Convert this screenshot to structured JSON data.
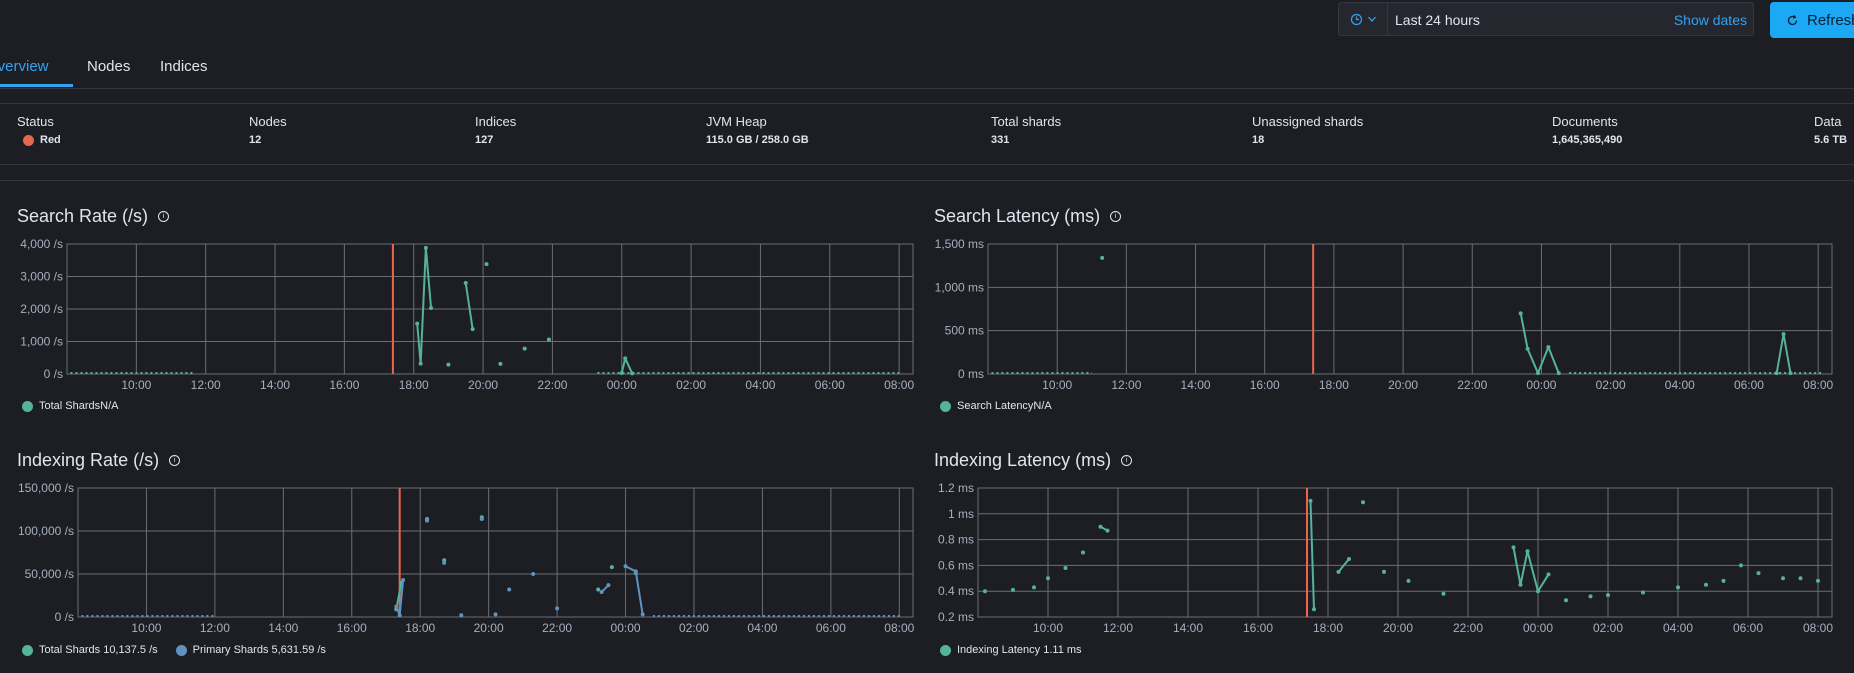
{
  "datepicker": {
    "range_label": "Last 24 hours",
    "show_dates_label": "Show dates"
  },
  "refresh_label": "Refresh",
  "tabs": [
    {
      "label": "Overview"
    },
    {
      "label": "Nodes"
    },
    {
      "label": "Indices"
    }
  ],
  "summary": {
    "status_label": "Status",
    "status_value": "Red",
    "status_color": "#e7664c",
    "nodes_label": "Nodes",
    "nodes_value": "12",
    "indices_label": "Indices",
    "indices_value": "127",
    "jvm_label": "JVM Heap",
    "jvm_value": "115.0 GB / 258.0 GB",
    "shards_label": "Total shards",
    "shards_value": "331",
    "unassigned_label": "Unassigned shards",
    "unassigned_value": "18",
    "documents_label": "Documents",
    "documents_value": "1,645,365,490",
    "data_label": "Data",
    "data_value": "5.6 TB"
  },
  "colors": {
    "teal": "#54b399",
    "blue": "#6092c0",
    "red_marker": "#e7664c",
    "accent": "#36a2ef"
  },
  "x_ticks": [
    "10:00",
    "12:00",
    "14:00",
    "16:00",
    "18:00",
    "20:00",
    "22:00",
    "00:00",
    "02:00",
    "04:00",
    "06:00",
    "08:00"
  ],
  "panels": {
    "search_rate": {
      "title": "Search Rate (/s)",
      "y_ticks": [
        "4,000 /s",
        "3,000 /s",
        "2,000 /s",
        "1,000 /s",
        "0 /s"
      ],
      "legend": [
        {
          "label": "Total ShardsN/A",
          "color": "#54b399"
        }
      ]
    },
    "search_latency": {
      "title": "Search Latency (ms)",
      "y_ticks": [
        "1,500 ms",
        "1,000 ms",
        "500 ms",
        "0 ms"
      ],
      "legend": [
        {
          "label": "Search LatencyN/A",
          "color": "#54b399"
        }
      ]
    },
    "indexing_rate": {
      "title": "Indexing Rate (/s)",
      "y_ticks": [
        "150,000 /s",
        "100,000 /s",
        "50,000 /s",
        "0 /s"
      ],
      "legend": [
        {
          "label": "Total Shards 10,137.5 /s",
          "color": "#54b399"
        },
        {
          "label": "Primary Shards 5,631.59 /s",
          "color": "#6092c0"
        }
      ]
    },
    "indexing_latency": {
      "title": "Indexing Latency (ms)",
      "y_ticks": [
        "1.2 ms",
        "1 ms",
        "0.8 ms",
        "0.6 ms",
        "0.4 ms",
        "0.2 ms"
      ],
      "legend": [
        {
          "label": "Indexing Latency 1.11 ms",
          "color": "#54b399"
        }
      ]
    }
  },
  "chart_data": [
    {
      "type": "line",
      "title": "Search Rate (/s)",
      "x_unit": "hours (08:00 day 1 = 8 … 08:00 day 2 = 32)",
      "ylim": [
        0,
        4000
      ],
      "series": [
        {
          "name": "Total Shards",
          "color": "#54b399",
          "points": [
            [
              18.1,
              1550
            ],
            [
              18.2,
              320
            ],
            [
              18.35,
              3880
            ],
            [
              18.5,
              2030
            ],
            [
              19.0,
              290
            ],
            [
              19.5,
              2800
            ],
            [
              19.7,
              1380
            ],
            [
              20.1,
              3380
            ],
            [
              20.5,
              310
            ],
            [
              21.2,
              780
            ],
            [
              21.9,
              1060
            ],
            [
              24.0,
              30
            ],
            [
              24.1,
              480
            ],
            [
              24.3,
              20
            ]
          ]
        }
      ]
    },
    {
      "type": "line",
      "title": "Search Latency (ms)",
      "ylim": [
        0,
        1500
      ],
      "series": [
        {
          "name": "Search Latency",
          "color": "#54b399",
          "points": [
            [
              11.3,
              1340
            ],
            [
              23.4,
              700
            ],
            [
              23.6,
              290
            ],
            [
              23.9,
              10
            ],
            [
              24.2,
              310
            ],
            [
              24.5,
              10
            ],
            [
              30.8,
              10
            ],
            [
              31.0,
              460
            ],
            [
              31.2,
              10
            ]
          ]
        }
      ]
    },
    {
      "type": "line",
      "title": "Indexing Rate (/s)",
      "ylim": [
        0,
        150000
      ],
      "series": [
        {
          "name": "Total Shards",
          "color": "#54b399",
          "points": [
            [
              17.3,
              9000
            ],
            [
              17.45,
              40000
            ],
            [
              18.2,
              114000
            ],
            [
              18.7,
              66000
            ],
            [
              19.8,
              116000
            ],
            [
              23.2,
              32000
            ],
            [
              23.6,
              58000
            ],
            [
              24.3,
              51000
            ]
          ]
        },
        {
          "name": "Primary Shards",
          "color": "#6092c0",
          "points": [
            [
              17.3,
              12000
            ],
            [
              17.4,
              2000
            ],
            [
              17.5,
              43000
            ],
            [
              18.2,
              112000
            ],
            [
              18.7,
              63000
            ],
            [
              19.2,
              2000
            ],
            [
              19.8,
              114000
            ],
            [
              20.2,
              3000
            ],
            [
              20.6,
              32000
            ],
            [
              21.3,
              50000
            ],
            [
              22.0,
              10000
            ],
            [
              23.3,
              29000
            ],
            [
              23.5,
              37000
            ],
            [
              24.0,
              59000
            ],
            [
              24.3,
              53000
            ],
            [
              24.5,
              3000
            ]
          ]
        }
      ]
    },
    {
      "type": "line",
      "title": "Indexing Latency (ms)",
      "ylim": [
        0.2,
        1.2
      ],
      "series": [
        {
          "name": "Indexing Latency",
          "color": "#54b399",
          "points": [
            [
              8.2,
              0.4
            ],
            [
              9.0,
              0.41
            ],
            [
              9.6,
              0.43
            ],
            [
              10.0,
              0.5
            ],
            [
              10.5,
              0.58
            ],
            [
              11.0,
              0.7
            ],
            [
              11.5,
              0.9
            ],
            [
              11.7,
              0.87
            ],
            [
              17.5,
              1.1
            ],
            [
              17.6,
              0.26
            ],
            [
              18.3,
              0.55
            ],
            [
              18.6,
              0.65
            ],
            [
              19.0,
              1.09
            ],
            [
              19.6,
              0.55
            ],
            [
              20.3,
              0.48
            ],
            [
              21.3,
              0.38
            ],
            [
              23.3,
              0.74
            ],
            [
              23.5,
              0.45
            ],
            [
              23.7,
              0.71
            ],
            [
              24.0,
              0.4
            ],
            [
              24.3,
              0.53
            ],
            [
              24.8,
              0.33
            ],
            [
              25.5,
              0.36
            ],
            [
              26.0,
              0.37
            ],
            [
              27.0,
              0.39
            ],
            [
              28.0,
              0.43
            ],
            [
              28.8,
              0.45
            ],
            [
              29.3,
              0.48
            ],
            [
              29.8,
              0.6
            ],
            [
              30.3,
              0.54
            ],
            [
              31.0,
              0.5
            ],
            [
              31.5,
              0.5
            ],
            [
              32.0,
              0.48
            ]
          ]
        }
      ]
    }
  ]
}
